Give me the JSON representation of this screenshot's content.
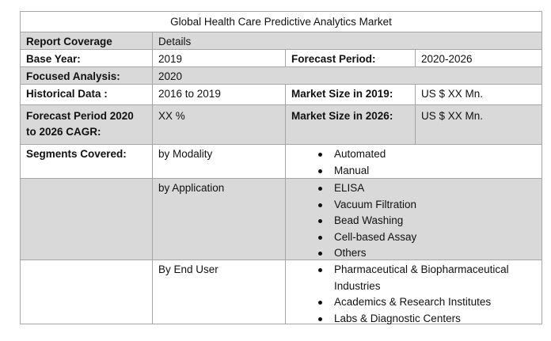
{
  "title": "Global Health Care Predictive Analytics Market",
  "coverage": {
    "label": "Report Coverage",
    "value": "Details"
  },
  "base_year": {
    "label": "Base Year:",
    "value": "2019",
    "forecast_label": "Forecast Period:",
    "forecast_value": "2020-2026"
  },
  "focused": {
    "label": "Focused Analysis:",
    "value": "2020"
  },
  "historical": {
    "label": "Historical Data :",
    "value": "2016 to 2019",
    "size_label": "Market Size in 2019:",
    "size_value": "US $ XX Mn."
  },
  "cagr": {
    "label": "Forecast Period 2020 to 2026 CAGR:",
    "value": "XX %",
    "size_label": "Market Size in 2026:",
    "size_value": "US $ XX Mn."
  },
  "segments": {
    "label": "Segments Covered:",
    "groups": [
      {
        "name": "by Modality",
        "items": [
          "Automated",
          "Manual"
        ]
      },
      {
        "name": "by Application",
        "items": [
          "ELISA",
          "Vacuum Filtration",
          "Bead Washing",
          "Cell-based Assay",
          "Others"
        ]
      },
      {
        "name": "By End User",
        "items": [
          "Pharmaceutical & Biopharmaceutical Industries",
          "Academics & Research Institutes",
          "Labs & Diagnostic Centers"
        ]
      }
    ]
  }
}
